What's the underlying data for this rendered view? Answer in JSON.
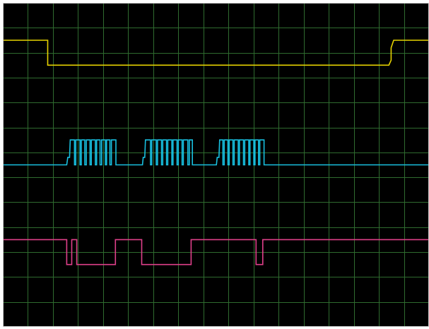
{
  "chart_data": {
    "type": "line",
    "grid": true,
    "background_color": "#000000",
    "grid_color": "#2f6b2f",
    "x_divisions": 17,
    "y_divisions": 13,
    "series": [
      {
        "color": "#e6d200",
        "points": [
          [
            0,
            1.5
          ],
          [
            1.79,
            1.5
          ],
          [
            1.79,
            2.5
          ],
          [
            15.4,
            2.5
          ],
          [
            15.49,
            2.3
          ],
          [
            15.49,
            1.8
          ],
          [
            15.59,
            1.5
          ],
          [
            17,
            1.5
          ]
        ]
      },
      {
        "color": "#18c0e0",
        "points": [
          [
            0,
            6.5
          ],
          [
            2.55,
            6.5
          ],
          [
            2.59,
            6.2
          ],
          [
            2.66,
            6.2
          ],
          [
            2.69,
            5.5
          ],
          [
            2.86,
            5.5
          ],
          [
            2.86,
            6.5
          ],
          [
            2.91,
            6.5
          ],
          [
            2.91,
            5.5
          ],
          [
            3.08,
            5.5
          ],
          [
            3.08,
            6.5
          ],
          [
            3.13,
            6.5
          ],
          [
            3.13,
            5.5
          ],
          [
            3.27,
            5.5
          ],
          [
            3.27,
            6.5
          ],
          [
            3.33,
            6.5
          ],
          [
            3.33,
            5.5
          ],
          [
            3.48,
            5.5
          ],
          [
            3.48,
            6.5
          ],
          [
            3.53,
            6.5
          ],
          [
            3.53,
            5.5
          ],
          [
            3.69,
            5.5
          ],
          [
            3.69,
            6.5
          ],
          [
            3.74,
            6.5
          ],
          [
            3.74,
            5.5
          ],
          [
            3.88,
            5.5
          ],
          [
            3.88,
            6.5
          ],
          [
            3.94,
            6.5
          ],
          [
            3.94,
            5.5
          ],
          [
            4.09,
            5.5
          ],
          [
            4.09,
            6.5
          ],
          [
            4.14,
            6.5
          ],
          [
            4.14,
            5.5
          ],
          [
            4.27,
            5.5
          ],
          [
            4.27,
            6.5
          ],
          [
            4.33,
            6.5
          ],
          [
            4.33,
            5.5
          ],
          [
            4.51,
            5.5
          ],
          [
            4.51,
            6.5
          ],
          [
            5.57,
            6.5
          ],
          [
            5.6,
            6.2
          ],
          [
            5.66,
            6.2
          ],
          [
            5.69,
            5.5
          ],
          [
            5.89,
            5.5
          ],
          [
            5.89,
            6.5
          ],
          [
            5.94,
            6.5
          ],
          [
            5.94,
            5.5
          ],
          [
            6.12,
            5.5
          ],
          [
            6.12,
            6.5
          ],
          [
            6.17,
            6.5
          ],
          [
            6.17,
            5.5
          ],
          [
            6.33,
            5.5
          ],
          [
            6.33,
            6.5
          ],
          [
            6.38,
            6.5
          ],
          [
            6.38,
            5.5
          ],
          [
            6.53,
            5.5
          ],
          [
            6.53,
            6.5
          ],
          [
            6.58,
            6.5
          ],
          [
            6.58,
            5.5
          ],
          [
            6.74,
            5.5
          ],
          [
            6.74,
            6.5
          ],
          [
            6.79,
            6.5
          ],
          [
            6.79,
            5.5
          ],
          [
            6.95,
            5.5
          ],
          [
            6.95,
            6.5
          ],
          [
            7.0,
            6.5
          ],
          [
            7.0,
            5.5
          ],
          [
            7.15,
            5.5
          ],
          [
            7.15,
            6.5
          ],
          [
            7.2,
            6.5
          ],
          [
            7.2,
            5.5
          ],
          [
            7.38,
            5.5
          ],
          [
            7.38,
            6.5
          ],
          [
            7.44,
            6.5
          ],
          [
            7.44,
            5.5
          ],
          [
            7.56,
            5.5
          ],
          [
            7.56,
            6.5
          ],
          [
            8.52,
            6.5
          ],
          [
            8.55,
            6.2
          ],
          [
            8.62,
            6.2
          ],
          [
            8.65,
            5.5
          ],
          [
            8.78,
            5.5
          ],
          [
            8.78,
            6.5
          ],
          [
            8.83,
            6.5
          ],
          [
            8.83,
            5.5
          ],
          [
            8.98,
            5.5
          ],
          [
            8.98,
            6.5
          ],
          [
            9.03,
            6.5
          ],
          [
            9.03,
            5.5
          ],
          [
            9.18,
            5.5
          ],
          [
            9.18,
            6.5
          ],
          [
            9.23,
            6.5
          ],
          [
            9.23,
            5.5
          ],
          [
            9.39,
            5.5
          ],
          [
            9.39,
            6.5
          ],
          [
            9.44,
            6.5
          ],
          [
            9.44,
            5.5
          ],
          [
            9.6,
            5.5
          ],
          [
            9.6,
            6.5
          ],
          [
            9.65,
            6.5
          ],
          [
            9.65,
            5.5
          ],
          [
            9.81,
            5.5
          ],
          [
            9.81,
            6.5
          ],
          [
            9.86,
            6.5
          ],
          [
            9.86,
            5.5
          ],
          [
            10.01,
            5.5
          ],
          [
            10.01,
            6.5
          ],
          [
            10.06,
            6.5
          ],
          [
            10.06,
            5.5
          ],
          [
            10.2,
            5.5
          ],
          [
            10.2,
            6.5
          ],
          [
            10.25,
            6.5
          ],
          [
            10.25,
            5.5
          ],
          [
            10.42,
            5.5
          ],
          [
            10.42,
            6.5
          ],
          [
            17,
            6.5
          ]
        ]
      },
      {
        "color": "#e0408a",
        "points": [
          [
            0,
            9.5
          ],
          [
            2.55,
            9.5
          ],
          [
            2.55,
            10.5
          ],
          [
            2.75,
            10.5
          ],
          [
            2.75,
            9.5
          ],
          [
            2.95,
            9.5
          ],
          [
            2.95,
            10.5
          ],
          [
            4.49,
            10.5
          ],
          [
            4.49,
            9.5
          ],
          [
            5.54,
            9.5
          ],
          [
            5.54,
            10.5
          ],
          [
            7.51,
            10.5
          ],
          [
            7.51,
            9.5
          ],
          [
            10.1,
            9.5
          ],
          [
            10.1,
            10.5
          ],
          [
            10.37,
            10.5
          ],
          [
            10.37,
            9.5
          ],
          [
            17,
            9.5
          ]
        ]
      }
    ]
  }
}
